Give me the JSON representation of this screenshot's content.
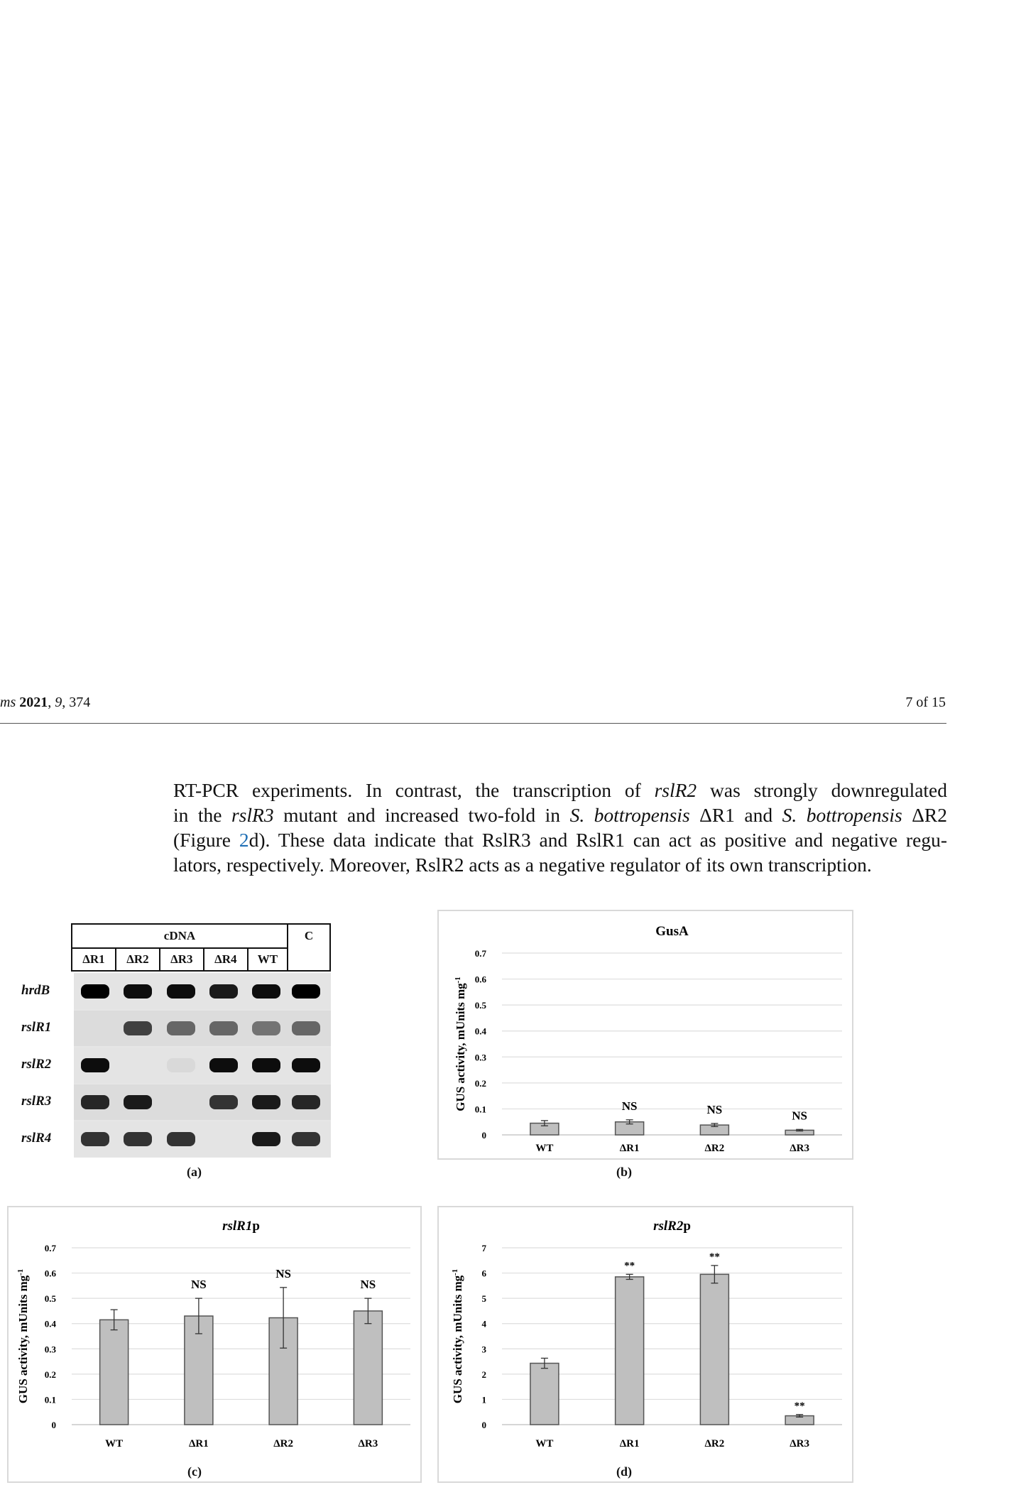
{
  "header": {
    "journal_prefix": "ms",
    "year": "2021",
    "volume": "9",
    "article": "374",
    "page": "7 of 15"
  },
  "paragraph": {
    "line1_a": "RT-PCR experiments. In contrast, the transcription of ",
    "line1_b": "rslR2",
    "line1_c": " was strongly downregulated",
    "line2_a": "in the ",
    "line2_b": "rslR3",
    "line2_c": " mutant and increased two-fold in ",
    "line2_d": "S. bottropensis",
    "line2_e": " ΔR1 and ",
    "line2_f": "S. bottropensis",
    "line2_g": " ΔR2",
    "line3_a": "(Figure ",
    "line3_ref": "2",
    "line3_b": "d). These data indicate that RslR3 and RslR1 can act as positive and negative regu-",
    "line4": "lators, respectively. Moreover, RslR2 acts as a negative regulator of its own transcription."
  },
  "gel": {
    "header_group": "cDNA",
    "control": "C",
    "lanes": [
      "ΔR1",
      "ΔR2",
      "ΔR3",
      "ΔR4",
      "WT"
    ],
    "rows": [
      "hrdB",
      "rslR1",
      "rslR2",
      "rslR3",
      "rslR4"
    ],
    "bands": [
      [
        1.0,
        0.95,
        0.95,
        0.9,
        0.95,
        1.0
      ],
      [
        0.0,
        0.75,
        0.6,
        0.6,
        0.55,
        0.6
      ],
      [
        0.95,
        0.0,
        0.15,
        0.95,
        0.95,
        0.95
      ],
      [
        0.85,
        0.9,
        0.0,
        0.8,
        0.9,
        0.85
      ],
      [
        0.8,
        0.8,
        0.8,
        0.0,
        0.9,
        0.8
      ]
    ],
    "caption": "(a)"
  },
  "chart_data": [
    {
      "type": "bar",
      "title": "GusA",
      "categories": [
        "WT",
        "ΔR1",
        "ΔR2",
        "ΔR3"
      ],
      "values": [
        0.045,
        0.05,
        0.038,
        0.018
      ],
      "errors": [
        0.01,
        0.008,
        0.006,
        0.003
      ],
      "annotations": [
        "",
        "NS",
        "NS",
        "NS"
      ],
      "ylabel": "GUS activity, mUnits mg",
      "ylabel_sup": "-1",
      "ylim": [
        0,
        0.7
      ],
      "ticks": [
        "0",
        "0.1",
        "0.2",
        "0.3",
        "0.4",
        "0.5",
        "0.6",
        "0.7"
      ],
      "grid": true,
      "caption": "(b)"
    },
    {
      "type": "bar",
      "title": "rslR1p",
      "title_italic": "rslR1",
      "title_rest": "p",
      "categories": [
        "WT",
        "ΔR1",
        "ΔR2",
        "ΔR3"
      ],
      "values": [
        0.415,
        0.43,
        0.423,
        0.45
      ],
      "errors": [
        0.04,
        0.07,
        0.12,
        0.05
      ],
      "annotations": [
        "",
        "NS",
        "NS",
        "NS"
      ],
      "ylabel": "GUS activity, mUnits mg",
      "ylabel_sup": "-1",
      "ylim": [
        0,
        0.7
      ],
      "ticks": [
        "0",
        "0.1",
        "0.2",
        "0.3",
        "0.4",
        "0.5",
        "0.6",
        "0.7"
      ],
      "grid": true,
      "caption": "(c)"
    },
    {
      "type": "bar",
      "title": "rslR2p",
      "title_italic": "rslR2",
      "title_rest": "p",
      "categories": [
        "WT",
        "ΔR1",
        "ΔR2",
        "ΔR3"
      ],
      "values": [
        2.43,
        5.85,
        5.95,
        0.35
      ],
      "errors": [
        0.2,
        0.1,
        0.35,
        0.05
      ],
      "annotations": [
        "",
        "**",
        "**",
        "**"
      ],
      "ylabel": "GUS activity, mUnits mg",
      "ylabel_sup": "-1",
      "ylim": [
        0,
        7
      ],
      "ticks": [
        "0",
        "1",
        "2",
        "3",
        "4",
        "5",
        "6",
        "7"
      ],
      "grid": true,
      "caption": "(d)"
    }
  ]
}
